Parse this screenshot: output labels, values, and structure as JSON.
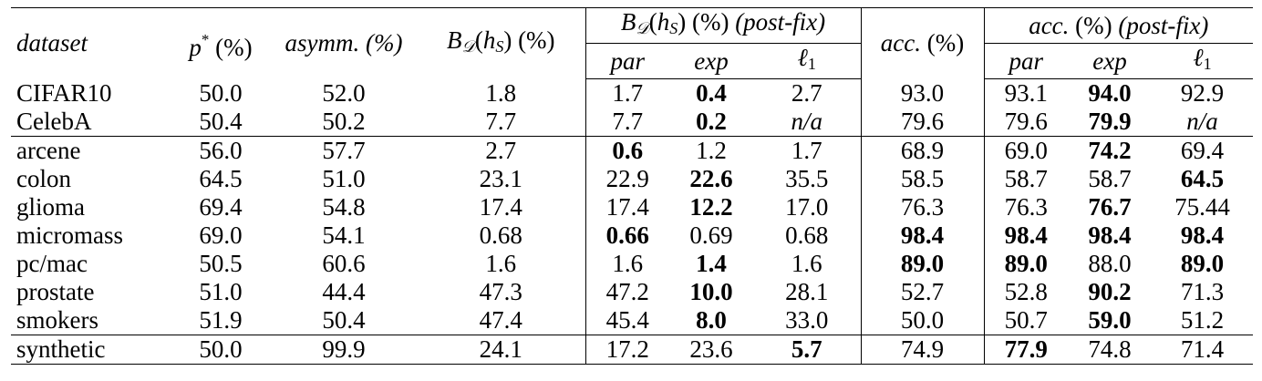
{
  "header": {
    "dataset": "dataset",
    "p_star": "p* (%)",
    "asymm": "asymm. (%)",
    "b_d_hs": "B𝒟(hS) (%)",
    "b_d_hs_postfix": "B𝒟(hS) (%) (post-fix)",
    "acc": "acc. (%)",
    "acc_postfix": "acc. (%) (post-fix)",
    "sub": {
      "par": "par",
      "exp": "exp",
      "l1": "ℓ1"
    }
  },
  "rows": [
    {
      "dataset": "CIFAR10",
      "p": "50.0",
      "asymm": "52.0",
      "b": "1.8",
      "b_par": "1.7",
      "b_exp": "0.4",
      "b_l1": "2.7",
      "acc": "93.0",
      "acc_par": "93.1",
      "acc_exp": "94.0",
      "acc_l1": "92.9"
    },
    {
      "dataset": "CelebA",
      "p": "50.4",
      "asymm": "50.2",
      "b": "7.7",
      "b_par": "7.7",
      "b_exp": "0.2",
      "b_l1": "n/a",
      "acc": "79.6",
      "acc_par": "79.6",
      "acc_exp": "79.9",
      "acc_l1": "n/a"
    },
    {
      "dataset": "arcene",
      "p": "56.0",
      "asymm": "57.7",
      "b": "2.7",
      "b_par": "0.6",
      "b_exp": "1.2",
      "b_l1": "1.7",
      "acc": "68.9",
      "acc_par": "69.0",
      "acc_exp": "74.2",
      "acc_l1": "69.4"
    },
    {
      "dataset": "colon",
      "p": "64.5",
      "asymm": "51.0",
      "b": "23.1",
      "b_par": "22.9",
      "b_exp": "22.6",
      "b_l1": "35.5",
      "acc": "58.5",
      "acc_par": "58.7",
      "acc_exp": "58.7",
      "acc_l1": "64.5"
    },
    {
      "dataset": "glioma",
      "p": "69.4",
      "asymm": "54.8",
      "b": "17.4",
      "b_par": "17.4",
      "b_exp": "12.2",
      "b_l1": "17.0",
      "acc": "76.3",
      "acc_par": "76.3",
      "acc_exp": "76.7",
      "acc_l1": "75.44"
    },
    {
      "dataset": "micromass",
      "p": "69.0",
      "asymm": "54.1",
      "b": "0.68",
      "b_par": "0.66",
      "b_exp": "0.69",
      "b_l1": "0.68",
      "acc": "98.4",
      "acc_par": "98.4",
      "acc_exp": "98.4",
      "acc_l1": "98.4"
    },
    {
      "dataset": "pc/mac",
      "p": "50.5",
      "asymm": "60.6",
      "b": "1.6",
      "b_par": "1.6",
      "b_exp": "1.4",
      "b_l1": "1.6",
      "acc": "89.0",
      "acc_par": "89.0",
      "acc_exp": "88.0",
      "acc_l1": "89.0"
    },
    {
      "dataset": "prostate",
      "p": "51.0",
      "asymm": "44.4",
      "b": "47.3",
      "b_par": "47.2",
      "b_exp": "10.0",
      "b_l1": "28.1",
      "acc": "52.7",
      "acc_par": "52.8",
      "acc_exp": "90.2",
      "acc_l1": "71.3"
    },
    {
      "dataset": "smokers",
      "p": "51.9",
      "asymm": "50.4",
      "b": "47.4",
      "b_par": "45.4",
      "b_exp": "8.0",
      "b_l1": "33.0",
      "acc": "50.0",
      "acc_par": "50.7",
      "acc_exp": "59.0",
      "acc_l1": "51.2"
    },
    {
      "dataset": "synthetic",
      "p": "50.0",
      "asymm": "99.9",
      "b": "24.1",
      "b_par": "17.2",
      "b_exp": "23.6",
      "b_l1": "5.7",
      "acc": "74.9",
      "acc_par": "77.9",
      "acc_exp": "74.8",
      "acc_l1": "71.4"
    }
  ]
}
